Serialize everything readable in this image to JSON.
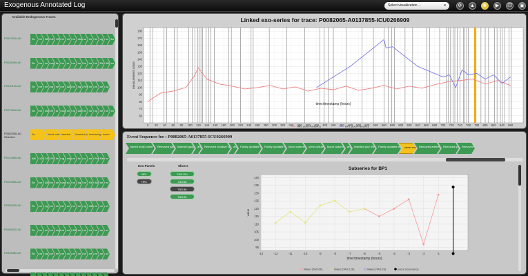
{
  "app": {
    "title": "Exogenous Annotated Log"
  },
  "toolbar": {
    "select_label": "Select visualization ...",
    "icons": [
      "refresh-icon",
      "flask-icon",
      "star-icon",
      "play-icon",
      "copy-icon",
      "window-icon"
    ]
  },
  "left_panel": {
    "title": "Available Endogenous Traces",
    "selected_label": "Selected",
    "traces": [
      {
        "id": "P0037005-A0",
        "selected": false,
        "chevrons": [
          [
            "Se",
            "g"
          ],
          [
            "ne",
            "g"
          ],
          [
            "ABI",
            "g"
          ],
          [
            "Ne",
            "g"
          ],
          [
            "120",
            "g"
          ],
          [
            "ne",
            "g"
          ],
          [
            "ne",
            "g"
          ],
          [
            "ne",
            "g"
          ],
          [
            "she",
            "g"
          ],
          [
            "so",
            "g"
          ],
          [
            "ne",
            "g"
          ],
          [
            "fw",
            "g"
          ],
          [
            "ng",
            "g"
          ],
          [
            "so",
            "g"
          ],
          [
            "bo",
            "g"
          ]
        ]
      },
      {
        "id": "P0038059-A0",
        "selected": false,
        "chevrons": [
          [
            "Se",
            "g"
          ],
          [
            "ne",
            "g"
          ],
          [
            "ne",
            "g"
          ],
          [
            "sng",
            "g"
          ],
          [
            "fw",
            "g"
          ],
          [
            "so",
            "g"
          ],
          [
            "ar",
            "g"
          ],
          [
            "ne",
            "g"
          ],
          [
            "ne",
            "g"
          ],
          [
            "fw",
            "g"
          ],
          [
            "ne",
            "g"
          ],
          [
            "sh",
            "g"
          ],
          [
            "Re",
            "g"
          ],
          [
            "ABI",
            "g"
          ],
          [
            "so",
            "g"
          ]
        ]
      },
      {
        "id": "P0040145-A0",
        "selected": false,
        "chevrons": [
          [
            "Se",
            "g"
          ],
          [
            "ne",
            "g"
          ],
          [
            "ne",
            "g"
          ],
          [
            "ng",
            "g"
          ],
          [
            "ne",
            "g"
          ],
          [
            "ne",
            "g"
          ],
          [
            "ABI",
            "g"
          ],
          [
            "fw",
            "g"
          ],
          [
            "ng",
            "g"
          ],
          [
            "Rem",
            "g"
          ],
          [
            "ne",
            "g"
          ],
          [
            "ne",
            "g"
          ],
          [
            "ne",
            "g"
          ],
          [
            "ng",
            "g"
          ]
        ]
      },
      {
        "id": "P0072648-A0",
        "selected": false,
        "chevrons": [
          [
            "Se",
            "g"
          ],
          [
            "ne",
            "g"
          ],
          [
            "sng",
            "g"
          ],
          [
            "ne",
            "g"
          ],
          [
            "ar",
            "g"
          ],
          [
            "sng",
            "g"
          ],
          [
            "ne",
            "g"
          ],
          [
            "ng",
            "g"
          ],
          [
            "ABI",
            "g"
          ],
          [
            "ne",
            "g"
          ],
          [
            "ne",
            "g"
          ],
          [
            "ng",
            "g"
          ],
          [
            "ne",
            "g"
          ],
          [
            "ne",
            "g"
          ],
          [
            "ne",
            "g"
          ]
        ]
      },
      {
        "id": "P0082065-A0",
        "selected": true,
        "chevrons": [
          [
            "Se",
            "y"
          ],
          [
            "blood culture",
            "y"
          ],
          [
            "Interfed",
            "y"
          ],
          [
            "Inserted plcu",
            "y"
          ],
          [
            "Inserted gauge",
            "y"
          ],
          [
            "Insert",
            "y"
          ]
        ]
      },
      {
        "id": "P0127865-A0",
        "selected": false,
        "chevrons": [
          [
            "ABI",
            "g"
          ],
          [
            "120",
            "g"
          ],
          [
            "240",
            "g"
          ],
          [
            "SSS",
            "g"
          ],
          [
            "fw",
            "g"
          ],
          [
            "ng",
            "g"
          ],
          [
            "sng",
            "g"
          ],
          [
            "ne",
            "g"
          ],
          [
            "fw",
            "g"
          ],
          [
            "so",
            "g"
          ],
          [
            "ne",
            "g"
          ],
          [
            "Rem",
            "g"
          ],
          [
            "Rem",
            "g"
          ],
          [
            "ne",
            "g"
          ]
        ]
      },
      {
        "id": "P0224685-A0",
        "selected": false,
        "chevrons": [
          [
            "Se",
            "g"
          ],
          [
            "ne",
            "g"
          ],
          [
            "ABI",
            "g"
          ],
          [
            "ne",
            "g"
          ],
          [
            "ne",
            "g"
          ],
          [
            "sng",
            "g"
          ],
          [
            "so",
            "g"
          ],
          [
            "ne",
            "g"
          ],
          [
            "ng",
            "g"
          ],
          [
            "ne",
            "g"
          ],
          [
            "Re",
            "g"
          ],
          [
            "ABI",
            "g"
          ],
          [
            "ne",
            "g"
          ],
          [
            "ne",
            "g"
          ]
        ]
      },
      {
        "id": "P0250035-A0",
        "selected": false,
        "chevrons": [
          [
            "Se",
            "g"
          ],
          [
            "ne",
            "g"
          ],
          [
            "ng",
            "g"
          ],
          [
            "ne",
            "g"
          ],
          [
            "ne",
            "g"
          ],
          [
            "fw",
            "g"
          ],
          [
            "so",
            "g"
          ],
          [
            "ne",
            "g"
          ],
          [
            "ne",
            "g"
          ],
          [
            "ng",
            "g"
          ],
          [
            "ABI",
            "g"
          ],
          [
            "ne",
            "g"
          ],
          [
            "ne",
            "g"
          ],
          [
            "ne",
            "g"
          ]
        ]
      },
      {
        "id": "P0266002-A0",
        "selected": false,
        "chevrons": [
          [
            "Se",
            "g"
          ],
          [
            "ne",
            "g"
          ],
          [
            "ne",
            "g"
          ],
          [
            "ne",
            "g"
          ],
          [
            "sng",
            "g"
          ],
          [
            "ne",
            "g"
          ],
          [
            "ne",
            "g"
          ],
          [
            "ABI",
            "g"
          ],
          [
            "ne",
            "g"
          ],
          [
            "ne",
            "g"
          ],
          [
            "ne",
            "g"
          ],
          [
            "ne",
            "g"
          ],
          [
            "ne",
            "g"
          ],
          [
            "ne",
            "g"
          ]
        ]
      },
      {
        "id": "P0318380-A0",
        "selected": false,
        "chevrons": [
          [
            "Se",
            "g"
          ],
          [
            "ne",
            "g"
          ],
          [
            "ng",
            "g"
          ],
          [
            "ne",
            "g"
          ],
          [
            "ne",
            "g"
          ],
          [
            "ne",
            "g"
          ],
          [
            "so",
            "g"
          ],
          [
            "ne",
            "g"
          ],
          [
            "ne",
            "g"
          ],
          [
            "fw",
            "g"
          ],
          [
            "ne",
            "g"
          ],
          [
            "ne",
            "g"
          ],
          [
            "ne",
            "g"
          ],
          [
            "ne",
            "g"
          ]
        ]
      },
      {
        "id": "P0330481-A0",
        "selected": false,
        "chevrons": [
          [
            "Se",
            "g"
          ],
          [
            "ne",
            "g"
          ],
          [
            "ne",
            "g"
          ],
          [
            "ng",
            "g"
          ],
          [
            "ne",
            "g"
          ],
          [
            "ne",
            "g"
          ],
          [
            "ne",
            "g"
          ],
          [
            "ne",
            "g"
          ],
          [
            "ABI",
            "g"
          ],
          [
            "ne",
            "g"
          ],
          [
            "ne",
            "g"
          ],
          [
            "ne",
            "g"
          ],
          [
            "ne",
            "g"
          ],
          [
            "ne",
            "g"
          ]
        ]
      }
    ]
  },
  "main_chart": {
    "title": "Linked exo-series for trace: P0082065-A0137855-ICU0266909",
    "chart_data": {
      "type": "line",
      "xlabel": "time:timestamp (hours)",
      "ylabel": "measurement value",
      "xlim": [
        -10,
        890
      ],
      "ylim": [
        50,
        185
      ],
      "xticks": [
        0,
        20,
        40,
        60,
        80,
        100,
        120,
        140,
        160,
        180,
        200,
        220,
        240,
        260,
        280,
        300,
        320,
        340,
        360,
        380,
        400,
        420,
        440,
        460,
        480,
        500,
        520,
        540,
        560,
        580,
        600,
        620,
        640,
        660,
        680,
        700,
        720,
        740,
        760,
        780,
        800,
        820,
        840,
        860
      ],
      "yticks": [
        60,
        70,
        80,
        90,
        100,
        110,
        120,
        130,
        140,
        150,
        160,
        170,
        180
      ],
      "grid": true,
      "legend_position": "bottom-center",
      "series": [
        {
          "name": "HR1 (Exo-Panel#1)",
          "color": "#f08080",
          "x": [
            0,
            30,
            60,
            90,
            110,
            120,
            140,
            170,
            200,
            230,
            260,
            290,
            320,
            350,
            380,
            410,
            440,
            470,
            500,
            530,
            560,
            590,
            620,
            650,
            680,
            710,
            740,
            770,
            800,
            830,
            860
          ],
          "y": [
            80,
            92,
            95,
            100,
            116,
            128,
            112,
            105,
            102,
            98,
            100,
            103,
            98,
            101,
            95,
            99,
            97,
            102,
            96,
            99,
            103,
            98,
            102,
            99,
            104,
            108,
            110,
            112,
            105,
            110,
            103
          ]
        },
        {
          "name": "BP1 (Exo-Panel#1)",
          "color": "#7a7ae8",
          "x": [
            400,
            480,
            560,
            565,
            580,
            640,
            700,
            715,
            730,
            745,
            760,
            780,
            800,
            820,
            840,
            860
          ],
          "y": [
            100,
            130,
            168,
            156,
            158,
            130,
            115,
            118,
            100,
            125,
            118,
            120,
            112,
            118,
            106,
            115
          ]
        }
      ],
      "events_x": [
        5,
        12,
        38,
        45,
        63,
        70,
        97,
        105,
        112,
        118,
        122,
        126,
        130,
        138,
        145,
        150,
        158,
        192,
        198,
        220,
        245,
        250,
        288,
        330,
        372,
        408,
        418,
        428,
        440,
        470,
        508,
        535,
        560,
        570,
        578,
        585,
        610,
        628,
        662,
        668,
        692,
        708,
        712,
        718,
        724,
        728,
        734,
        740,
        748,
        752,
        756,
        760,
        790,
        800,
        808,
        822,
        828,
        836,
        840,
        846,
        856,
        862
      ],
      "highlight_x": 776
    }
  },
  "event_panel": {
    "title": "Event Sequence for : P0082065-A0137855-ICU0266909",
    "events": [
      {
        "label": "tained motil comm",
        "color": "g"
      },
      {
        "label": "Removed gauge",
        "color": "g"
      },
      {
        "label": "Inserted gauge",
        "color": "g"
      },
      {
        "label": "ang",
        "color": "g"
      },
      {
        "label": "Removed invasive ventilation",
        "color": "g"
      },
      {
        "label": "ang",
        "color": "g"
      },
      {
        "label": "Family updated by rn",
        "color": "g"
      },
      {
        "label": "Family updated by ma",
        "color": "g"
      },
      {
        "label": "blood cultured",
        "color": "g"
      },
      {
        "label": "urine culture",
        "color": "g"
      },
      {
        "label": "blood cultured",
        "color": "g"
      },
      {
        "label": "ang",
        "color": "g"
      },
      {
        "label": "Inserted picc line",
        "color": "g"
      },
      {
        "label": "Family updated by ro",
        "color": "g"
      },
      {
        "label": "sheet note",
        "color": "y"
      },
      {
        "label": "Removed arterial line",
        "color": "g"
      },
      {
        "label": "Removed gauge",
        "color": "g"
      },
      {
        "label": "Removed g",
        "color": "g"
      }
    ],
    "exo_panels": {
      "header": "Exo-Panels",
      "items": [
        {
          "label": "BP1",
          "active": true
        },
        {
          "label": "HR1",
          "active": false
        }
      ]
    },
    "slicers": {
      "header": "Slicers",
      "items": [
        {
          "label": "TAS:12h",
          "active": true
        },
        {
          "label": "TAS:6h",
          "active": true
        },
        {
          "label": "TAS:4h",
          "active": false
        },
        {
          "label": "TAS:2h",
          "active": true
        }
      ]
    }
  },
  "sub_chart": {
    "title": "Subseries for BP1",
    "chart_data": {
      "type": "line",
      "xlabel": "time:timestamp (hours)",
      "ylabel": "value",
      "xlim": [
        -13,
        1
      ],
      "ylim": [
        93,
        142
      ],
      "xticks": [
        -13,
        -12,
        -11,
        -10,
        -9,
        -8,
        -7,
        -6,
        -5,
        -4,
        -3,
        -2,
        -1,
        0
      ],
      "yticks": [
        95,
        100,
        105,
        110,
        115,
        120,
        125,
        130,
        135,
        140
      ],
      "grid": true,
      "legend_position": "bottom-center",
      "series": [
        {
          "name": "linked (TAS:6h)",
          "color": "#f39a9a",
          "x": [
            -6,
            -5,
            -4,
            -3,
            -2,
            -1
          ],
          "y": [
            120,
            115,
            120,
            126,
            97,
            129
          ]
        },
        {
          "name": "linked (TAS:12h)",
          "color": "#e5e57a",
          "x": [
            -12,
            -11,
            -10,
            -9,
            -8,
            -7,
            -6
          ],
          "y": [
            111,
            118,
            111,
            122,
            125,
            118,
            120
          ]
        },
        {
          "name": "linked (TAS:2h)",
          "color": "#8a8ae8",
          "x": [],
          "y": []
        }
      ],
      "event_occurrence": {
        "name": "event occurrence",
        "color": "#000000",
        "x": 0,
        "y": [
          91,
          134
        ]
      }
    }
  }
}
